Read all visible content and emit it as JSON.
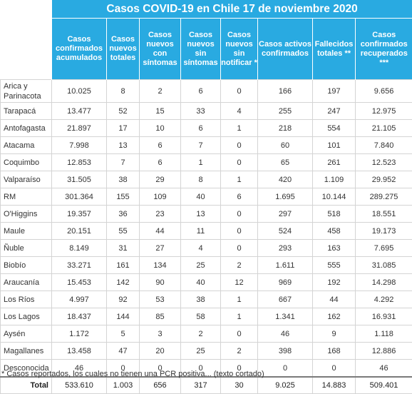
{
  "title": "Casos COVID-19 en Chile 17 de noviembre 2020",
  "columns": [
    "Casos confirmados acumulados",
    "Casos nuevos totales",
    "Casos nuevos con síntomas",
    "Casos nuevos sin síntomas",
    "Casos nuevos sin notificar *",
    "Casos activos confirmados",
    "Fallecidos totales **",
    "Casos confirmados recuperados ***"
  ],
  "rows": [
    {
      "region": "Arica y Parinacota",
      "values": [
        "10.025",
        "8",
        "2",
        "6",
        "0",
        "166",
        "197",
        "9.656"
      ]
    },
    {
      "region": "Tarapacá",
      "values": [
        "13.477",
        "52",
        "15",
        "33",
        "4",
        "255",
        "247",
        "12.975"
      ]
    },
    {
      "region": "Antofagasta",
      "values": [
        "21.897",
        "17",
        "10",
        "6",
        "1",
        "218",
        "554",
        "21.105"
      ]
    },
    {
      "region": "Atacama",
      "values": [
        "7.998",
        "13",
        "6",
        "7",
        "0",
        "60",
        "101",
        "7.840"
      ]
    },
    {
      "region": "Coquimbo",
      "values": [
        "12.853",
        "7",
        "6",
        "1",
        "0",
        "65",
        "261",
        "12.523"
      ]
    },
    {
      "region": "Valparaíso",
      "values": [
        "31.505",
        "38",
        "29",
        "8",
        "1",
        "420",
        "1.109",
        "29.952"
      ]
    },
    {
      "region": "RM",
      "values": [
        "301.364",
        "155",
        "109",
        "40",
        "6",
        "1.695",
        "10.144",
        "289.275"
      ]
    },
    {
      "region": "O'Higgins",
      "values": [
        "19.357",
        "36",
        "23",
        "13",
        "0",
        "297",
        "518",
        "18.551"
      ]
    },
    {
      "region": "Maule",
      "values": [
        "20.151",
        "55",
        "44",
        "11",
        "0",
        "524",
        "458",
        "19.173"
      ]
    },
    {
      "region": "Ñuble",
      "values": [
        "8.149",
        "31",
        "27",
        "4",
        "0",
        "293",
        "163",
        "7.695"
      ]
    },
    {
      "region": "Biobío",
      "values": [
        "33.271",
        "161",
        "134",
        "25",
        "2",
        "1.611",
        "555",
        "31.085"
      ]
    },
    {
      "region": "Araucanía",
      "values": [
        "15.453",
        "142",
        "90",
        "40",
        "12",
        "969",
        "192",
        "14.298"
      ]
    },
    {
      "region": "Los Ríos",
      "values": [
        "4.997",
        "92",
        "53",
        "38",
        "1",
        "667",
        "44",
        "4.292"
      ]
    },
    {
      "region": "Los Lagos",
      "values": [
        "18.437",
        "144",
        "85",
        "58",
        "1",
        "1.341",
        "162",
        "16.931"
      ]
    },
    {
      "region": "Aysén",
      "values": [
        "1.172",
        "5",
        "3",
        "2",
        "0",
        "46",
        "9",
        "1.118"
      ]
    },
    {
      "region": "Magallanes",
      "values": [
        "13.458",
        "47",
        "20",
        "25",
        "2",
        "398",
        "168",
        "12.886"
      ]
    },
    {
      "region": "Desconocida",
      "values": [
        "46",
        "0",
        "0",
        "0",
        "0",
        "0",
        "0",
        "46"
      ]
    }
  ],
  "total": {
    "label": "Total",
    "values": [
      "533.610",
      "1.003",
      "656",
      "317",
      "30",
      "9.025",
      "14.883",
      "509.401"
    ]
  },
  "footnote": "* Casos reportados, los cuales no tienen una PCR positiva... (texto cortado)",
  "colors": {
    "header_bg": "#29aae1",
    "header_text": "#ffffff",
    "alt_row": "#eef6fb",
    "border": "#d4d4d4"
  }
}
